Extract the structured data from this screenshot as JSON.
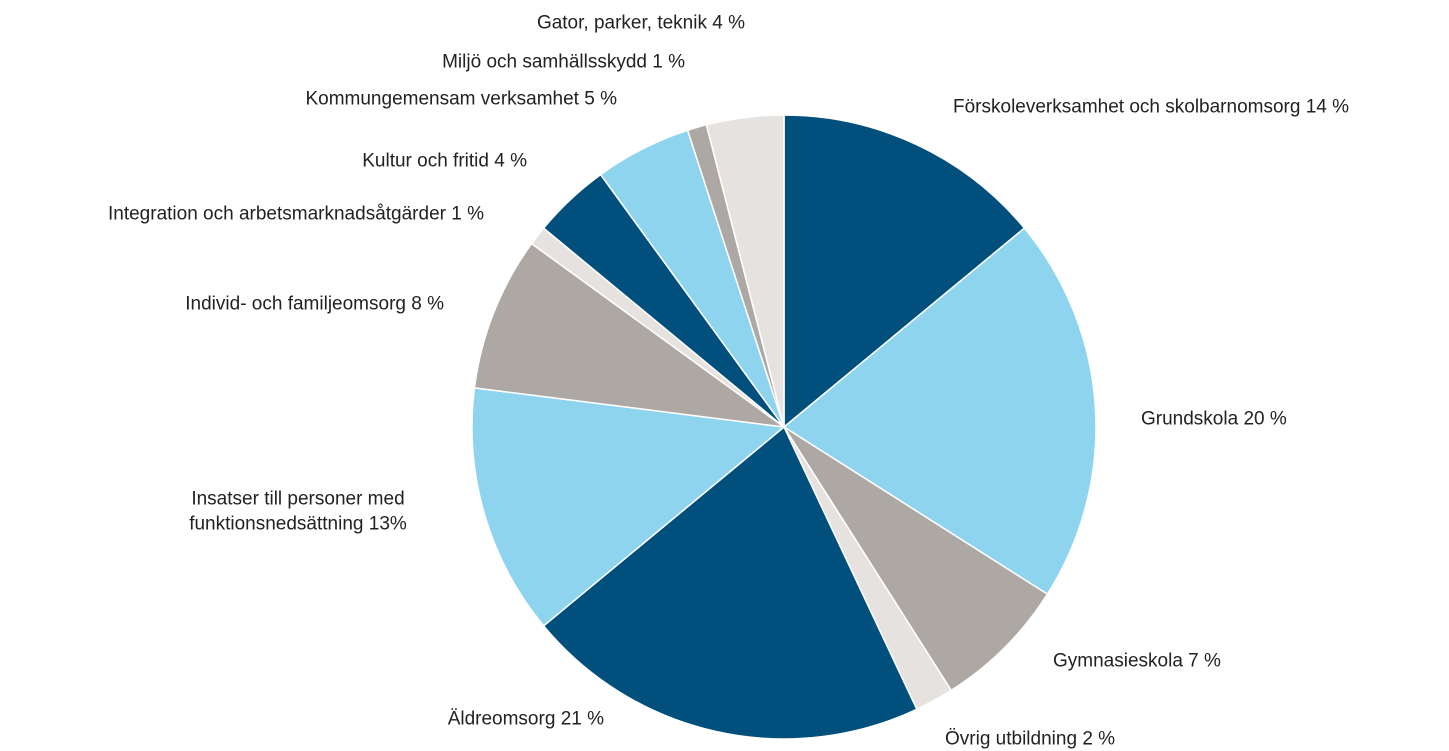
{
  "chart_data": {
    "type": "pie",
    "categories": [
      "Förskoleverksamhet och skolbarnomsorg",
      "Grundskola",
      "Gymnasieskola",
      "Övrig utbildning",
      "Äldreomsorg",
      "Insatser till personer med funktionsnedsättning",
      "Individ- och familjeomsorg",
      "Integration och arbetsmarknadsåtgärder",
      "Kultur och fritid",
      "Kommungemensam verksamhet",
      "Miljö och samhällsskydd",
      "Gator, parker, teknik"
    ],
    "values": [
      14,
      20,
      7,
      2,
      21,
      13,
      8,
      1,
      4,
      5,
      1,
      4
    ],
    "value_labels": [
      "14 %",
      "20 %",
      "7 %",
      "2 %",
      "21 %",
      "13%",
      "8 %",
      "1 %",
      "4 %",
      "5 %",
      "1 %",
      "4 %"
    ],
    "colors": [
      "#004f7c",
      "#8fd4ef",
      "#aea8a4",
      "#e6e2df",
      "#004f7c",
      "#8fd4ef",
      "#aea8a4",
      "#e6e2df",
      "#004f7c",
      "#8fd4ef",
      "#aea8a4",
      "#e6e2df"
    ]
  }
}
